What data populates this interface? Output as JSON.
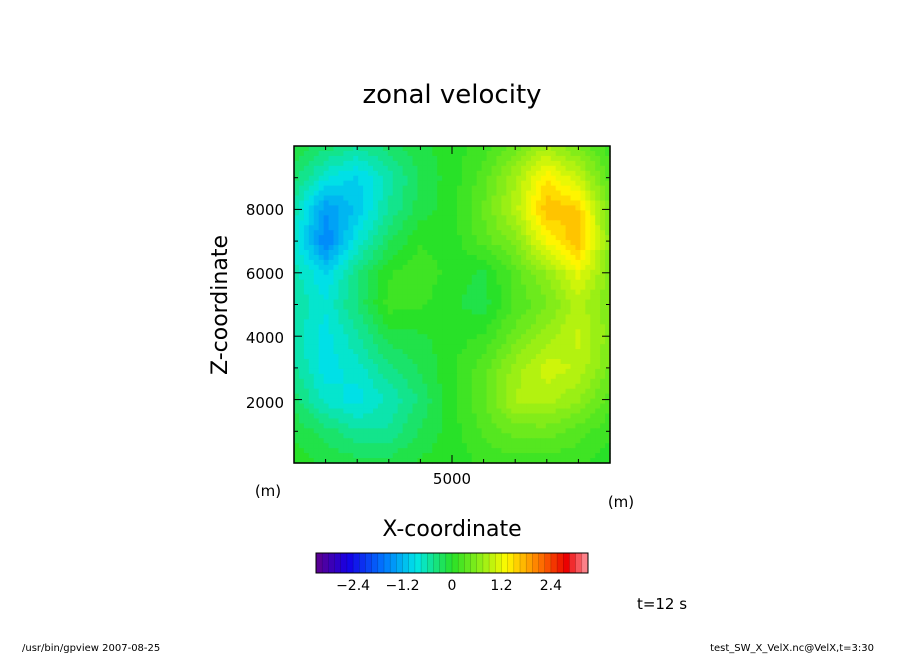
{
  "chart_data": {
    "type": "heatmap",
    "title": "zonal velocity",
    "xlabel": "X-coordinate",
    "ylabel": "Z-coordinate",
    "x_unit": "(m)",
    "y_unit": "(m)",
    "xlim": [
      0,
      10000
    ],
    "ylim": [
      0,
      10000
    ],
    "x_ticks": [
      "5000"
    ],
    "y_ticks": [
      "2000",
      "4000",
      "6000",
      "8000"
    ],
    "x_tick_values": [
      5000
    ],
    "y_tick_values": [
      2000,
      4000,
      6000,
      8000
    ],
    "colorbar": {
      "range": [
        -3.3,
        3.3
      ],
      "step": 0.15,
      "tick_labels": [
        "−2.4",
        "−1.2",
        "0",
        "1.2",
        "2.4"
      ],
      "tick_values": [
        -2.4,
        -1.2,
        0,
        1.2,
        2.4
      ]
    },
    "field_grid": {
      "x": [
        0,
        1000,
        2000,
        3000,
        4000,
        5000,
        6000,
        7000,
        8000,
        9000,
        10000
      ],
      "z": [
        10000,
        9000,
        8000,
        7000,
        6000,
        5000,
        4000,
        3000,
        2000,
        1000,
        0
      ],
      "values": [
        [
          -0.1,
          -0.3,
          -0.5,
          -0.3,
          -0.1,
          0.0,
          0.15,
          0.45,
          0.8,
          0.5,
          0.15
        ],
        [
          -0.3,
          -0.8,
          -1.0,
          -0.6,
          -0.2,
          0.0,
          0.3,
          0.8,
          1.4,
          1.0,
          0.3
        ],
        [
          -0.6,
          -1.4,
          -1.1,
          -0.5,
          -0.15,
          0.0,
          0.4,
          0.9,
          1.7,
          1.6,
          0.5
        ],
        [
          -0.7,
          -1.6,
          -0.8,
          -0.25,
          0.05,
          0.0,
          0.3,
          0.6,
          1.3,
          1.7,
          0.6
        ],
        [
          -0.6,
          -1.0,
          -0.4,
          0.05,
          0.2,
          0.0,
          -0.1,
          0.3,
          0.7,
          1.2,
          0.6
        ],
        [
          -0.55,
          -0.8,
          -0.35,
          0.15,
          0.1,
          -0.05,
          -0.15,
          0.25,
          0.5,
          0.9,
          0.55
        ],
        [
          -0.6,
          -0.9,
          -0.55,
          -0.15,
          -0.1,
          0.0,
          0.1,
          0.45,
          0.75,
          1.0,
          0.6
        ],
        [
          -0.5,
          -0.9,
          -0.75,
          -0.4,
          -0.2,
          0.05,
          0.3,
          0.75,
          1.05,
          0.95,
          0.5
        ],
        [
          -0.3,
          -0.75,
          -0.9,
          -0.65,
          -0.35,
          0.05,
          0.35,
          0.85,
          0.9,
          0.7,
          0.3
        ],
        [
          -0.1,
          -0.3,
          -0.5,
          -0.5,
          -0.2,
          0.0,
          0.25,
          0.45,
          0.45,
          0.3,
          0.1
        ],
        [
          0.0,
          -0.1,
          -0.15,
          -0.15,
          -0.05,
          0.0,
          0.1,
          0.15,
          0.15,
          0.1,
          0.0
        ]
      ]
    }
  },
  "annotations": {
    "time": "t=12 s",
    "footer_left": "/usr/bin/gpview   2007-08-25",
    "footer_right": "test_SW_X_VelX.nc@VelX,t=3:30"
  }
}
